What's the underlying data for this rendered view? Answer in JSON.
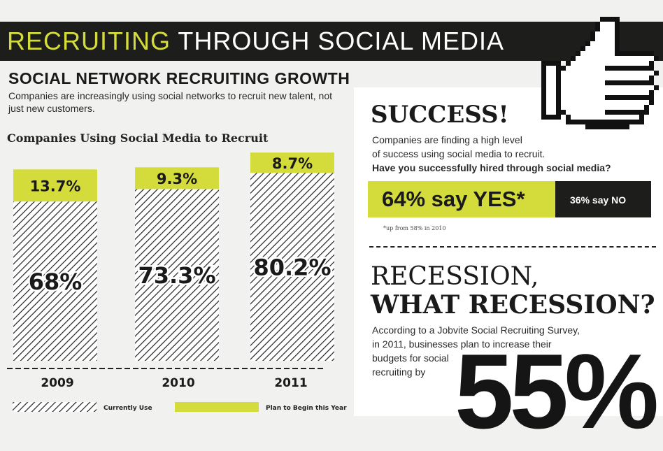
{
  "banner": {
    "title_highlight": "RECRUITING",
    "title_rest": " THROUGH SOCIAL MEDIA"
  },
  "growth": {
    "title": "SOCIAL NETWORK RECRUITING GROWTH",
    "subtitle": "Companies are increasingly using social networks to recruit new talent, not just new customers."
  },
  "chart_data": {
    "type": "bar",
    "stacked": true,
    "title": "Companies Using Social Media to Recruit",
    "categories": [
      "2009",
      "2010",
      "2011"
    ],
    "series": [
      {
        "name": "Currently Use",
        "values": [
          68,
          73.3,
          80.2
        ],
        "labels": [
          "68%",
          "73.3%",
          "80.2%"
        ]
      },
      {
        "name": "Plan to Begin this Year",
        "values": [
          13.7,
          9.3,
          8.7
        ],
        "labels": [
          "13.7%",
          "9.3%",
          "8.7%"
        ]
      }
    ],
    "ylim": [
      0,
      100
    ],
    "legend": "bottom",
    "grid": false,
    "colors": {
      "current": "#222222",
      "plan": "#d4dc3c"
    }
  },
  "success": {
    "title": "SUCCESS!",
    "line1": "Companies are finding a high level",
    "line2": "of success using social media to recruit.",
    "question": "Have you successfully hired through social media?",
    "yes": "64% say YES*",
    "no": "36% say NO",
    "footnote": "*up from 58% in 2010"
  },
  "recession": {
    "line1": "RECESSION,",
    "line2": "WHAT RECESSION?",
    "text1": "According to a Jobvite Social Recruiting Survey,",
    "text2": "in 2011, businesses plan to increase their",
    "text3": "budgets for social",
    "text4": "recruiting by",
    "big_value": "55%"
  },
  "icons": {
    "thumb": "thumbs-up-icon"
  }
}
